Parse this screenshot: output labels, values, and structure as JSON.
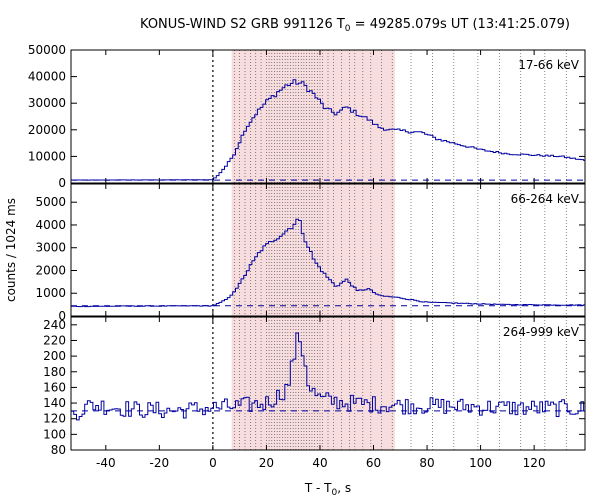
{
  "chart_data": {
    "type": "line",
    "title": {
      "prefix": "KONUS-WIND S2 GRB 991126 T",
      "sub": "0",
      "suffix": " = 49285.079s UT (13:41:25.079)"
    },
    "xlabel": {
      "prefix": "T - T",
      "sub": "0",
      "suffix": ", s"
    },
    "ylabel": "counts / 1024 ms",
    "xlim": [
      -53,
      139
    ],
    "xticks": [
      -40,
      -20,
      0,
      20,
      40,
      60,
      80,
      100,
      120
    ],
    "colors": {
      "series": "#0000a0",
      "shade": "#f7dddd",
      "frame": "#000000",
      "vline": "#000000"
    },
    "shaded_interval": [
      7,
      68
    ],
    "trigger_line_x": 0,
    "dotted_lines_x": [
      8,
      10,
      12,
      14,
      16,
      18,
      20,
      21,
      22,
      23,
      24,
      25,
      26,
      27,
      28,
      29,
      30,
      31,
      32,
      33,
      34,
      35,
      36,
      37,
      38,
      39,
      40,
      41,
      43,
      45,
      48,
      51,
      53,
      56,
      59,
      63,
      67,
      74,
      82,
      90,
      99,
      107,
      115,
      124,
      132
    ],
    "panels": [
      {
        "band": "17-66 keV",
        "ylim": [
          0,
          50000
        ],
        "yticks": [
          0,
          10000,
          20000,
          30000,
          40000,
          50000
        ],
        "background": 1100,
        "profile": [
          [
            -53,
            1100
          ],
          [
            0,
            1200
          ],
          [
            2,
            3000
          ],
          [
            5,
            6500
          ],
          [
            8,
            11000
          ],
          [
            12,
            20000
          ],
          [
            16,
            26000
          ],
          [
            20,
            30500
          ],
          [
            24,
            34000
          ],
          [
            28,
            37000
          ],
          [
            31,
            38000
          ],
          [
            34,
            37000
          ],
          [
            38,
            33000
          ],
          [
            42,
            28000
          ],
          [
            46,
            26000
          ],
          [
            50,
            28500
          ],
          [
            54,
            26000
          ],
          [
            58,
            24000
          ],
          [
            62,
            21000
          ],
          [
            66,
            20000
          ],
          [
            72,
            19500
          ],
          [
            78,
            19000
          ],
          [
            84,
            16500
          ],
          [
            92,
            14500
          ],
          [
            100,
            12500
          ],
          [
            110,
            11000
          ],
          [
            120,
            10500
          ],
          [
            130,
            10000
          ],
          [
            139,
            8500
          ]
        ]
      },
      {
        "band": "66-264 keV",
        "ylim": [
          0,
          5800
        ],
        "yticks": [
          0,
          1000,
          2000,
          3000,
          4000,
          5000
        ],
        "background": 450,
        "profile": [
          [
            -53,
            420
          ],
          [
            0,
            450
          ],
          [
            3,
            600
          ],
          [
            6,
            800
          ],
          [
            10,
            1400
          ],
          [
            14,
            2200
          ],
          [
            18,
            2900
          ],
          [
            22,
            3300
          ],
          [
            26,
            3600
          ],
          [
            30,
            4000
          ],
          [
            32,
            4300
          ],
          [
            34,
            3500
          ],
          [
            38,
            2400
          ],
          [
            42,
            1800
          ],
          [
            46,
            1300
          ],
          [
            50,
            1600
          ],
          [
            54,
            1100
          ],
          [
            58,
            1200
          ],
          [
            62,
            900
          ],
          [
            70,
            800
          ],
          [
            80,
            600
          ],
          [
            95,
            550
          ],
          [
            110,
            500
          ],
          [
            139,
            480
          ]
        ]
      },
      {
        "band": "264-999 keV",
        "ylim": [
          80,
          250
        ],
        "yticks": [
          80,
          100,
          120,
          140,
          160,
          180,
          200,
          220,
          240
        ],
        "background": 130,
        "profile": [
          [
            -53,
            125
          ],
          [
            -45,
            138
          ],
          [
            -30,
            132
          ],
          [
            -15,
            130
          ],
          [
            0,
            134
          ],
          [
            10,
            136
          ],
          [
            20,
            140
          ],
          [
            24,
            148
          ],
          [
            28,
            160
          ],
          [
            30,
            195
          ],
          [
            32,
            228
          ],
          [
            34,
            200
          ],
          [
            36,
            160
          ],
          [
            40,
            145
          ],
          [
            50,
            140
          ],
          [
            70,
            137
          ],
          [
            90,
            136
          ],
          [
            110,
            134
          ],
          [
            139,
            133
          ]
        ],
        "noise": 11
      }
    ]
  }
}
